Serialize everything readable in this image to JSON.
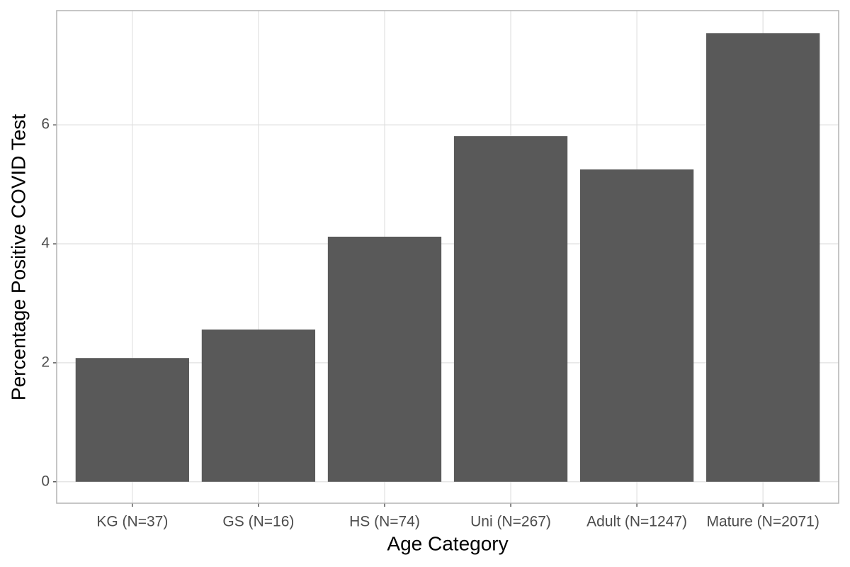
{
  "chart_data": {
    "type": "bar",
    "x_label": "Age Category",
    "y_label": "Percentage Positive COVID Test",
    "categories": [
      "KG (N=37)",
      "GS (N=16)",
      "HS (N=74)",
      "Uni (N=267)",
      "Adult (N=1247)",
      "Mature (N=2071)"
    ],
    "values": [
      2.08,
      2.56,
      4.12,
      5.81,
      5.25,
      7.54
    ],
    "color": "#595959",
    "ylim": [
      -0.36,
      7.92
    ],
    "yticks": [
      0,
      2,
      4,
      6
    ],
    "grid": true
  }
}
